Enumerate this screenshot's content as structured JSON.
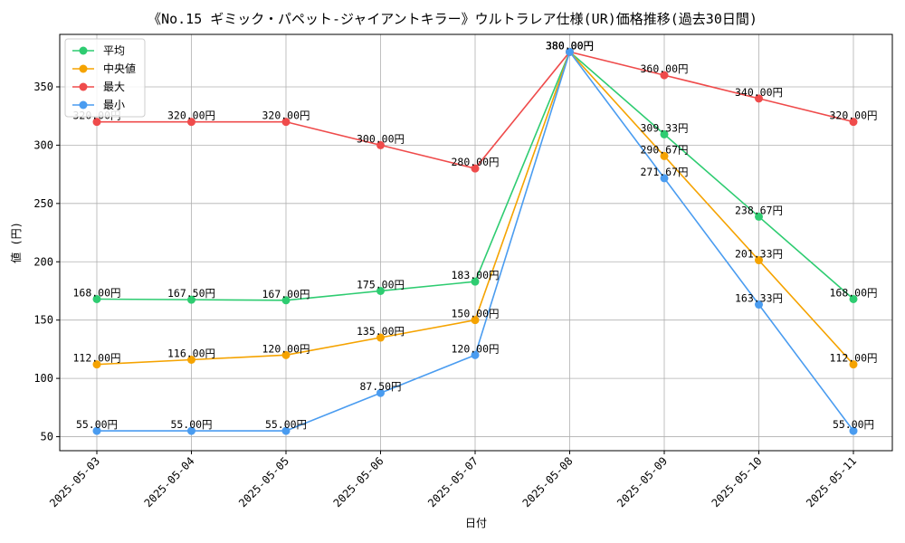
{
  "chart_data": {
    "type": "line",
    "title": "《No.15 ギミック・パペット-ジャイアントキラー》ウルトラレア仕様(UR)価格推移(過去30日間)",
    "xlabel": "日付",
    "ylabel": "値 (円)",
    "ylim": [
      38,
      395
    ],
    "yticks": [
      50,
      100,
      150,
      200,
      250,
      300,
      350
    ],
    "grid": true,
    "legend_position": "top-left",
    "value_suffix": "円",
    "categories": [
      "2025-05-03",
      "2025-05-04",
      "2025-05-05",
      "2025-05-06",
      "2025-05-07",
      "2025-05-08",
      "2025-05-09",
      "2025-05-10",
      "2025-05-11"
    ],
    "series": [
      {
        "name": "平均",
        "color": "#2ecc71",
        "values": [
          168.0,
          167.5,
          167.0,
          175.0,
          183.0,
          380.0,
          309.33,
          238.67,
          168.0
        ]
      },
      {
        "name": "中央値",
        "color": "#f5a300",
        "values": [
          112.0,
          116.0,
          120.0,
          135.0,
          150.0,
          380.0,
          290.67,
          201.33,
          112.0
        ]
      },
      {
        "name": "最大",
        "color": "#ef4b4b",
        "values": [
          320.0,
          320.0,
          320.0,
          300.0,
          280.0,
          380.0,
          360.0,
          340.0,
          320.0
        ]
      },
      {
        "name": "最小",
        "color": "#4a9cf0",
        "values": [
          55.0,
          55.0,
          55.0,
          87.5,
          120.0,
          380.0,
          271.67,
          163.33,
          55.0
        ]
      }
    ]
  }
}
